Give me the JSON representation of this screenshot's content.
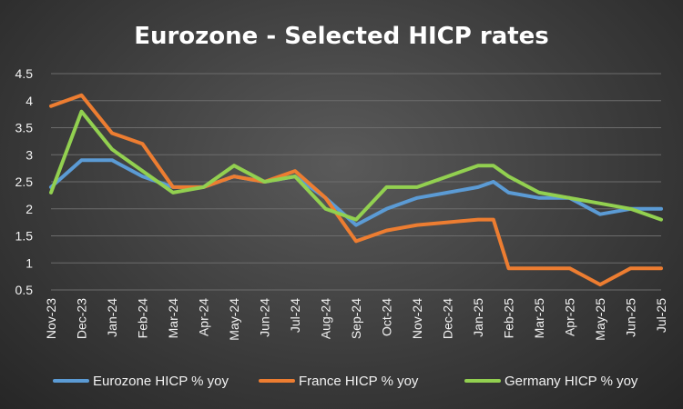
{
  "chart_data": {
    "type": "line",
    "title": "Eurozone - Selected HICP rates",
    "xlabel": "",
    "ylabel": "",
    "ylim": [
      0.5,
      4.5
    ],
    "yticks": [
      "0.5",
      "1",
      "1.5",
      "2",
      "2.5",
      "3",
      "3.5",
      "4",
      "4.5"
    ],
    "grid": true,
    "legend_position": "bottom",
    "categories": [
      "Nov-23",
      "Dec-23",
      "Jan-24",
      "Feb-24",
      "Mar-24",
      "Apr-24",
      "May-24",
      "Jun-24",
      "Jul-24",
      "Aug-24",
      "Sep-24",
      "Oct-24",
      "Nov-24",
      "Dec-24",
      "Jan-25",
      "Feb-25",
      "Mar-25",
      "Apr-25",
      "May-25",
      "Jun-25",
      "Jul-25"
    ],
    "series": [
      {
        "name": "Eurozone HICP % yoy",
        "color": "#5b9bd5",
        "points": [
          [
            "Nov-23",
            2.4
          ],
          [
            "Dec-23",
            2.9
          ],
          [
            "Jan-24",
            2.9
          ],
          [
            "Feb-24",
            2.6
          ],
          [
            "Mar-24",
            2.4
          ],
          [
            "Apr-24",
            2.4
          ],
          [
            "May-24",
            2.6
          ],
          [
            "Jun-24",
            2.5
          ],
          [
            "Jul-24",
            2.6
          ],
          [
            "Aug-24",
            2.2
          ],
          [
            "Sep-24",
            1.7
          ],
          [
            "Oct-24",
            2.0
          ],
          [
            "Nov-24",
            2.2
          ],
          [
            "Dec-24",
            2.3
          ],
          [
            "Jan-25",
            2.4
          ],
          [
            14.5,
            2.5
          ],
          [
            "Feb-25",
            2.3
          ],
          [
            "Mar-25",
            2.2
          ],
          [
            "Apr-25",
            2.2
          ],
          [
            "May-25",
            1.9
          ],
          [
            "Jun-25",
            2.0
          ],
          [
            "Jul-25",
            2.0
          ]
        ]
      },
      {
        "name": "France HICP % yoy",
        "color": "#ed7d31",
        "points": [
          [
            "Nov-23",
            3.9
          ],
          [
            "Dec-23",
            4.1
          ],
          [
            "Jan-24",
            3.4
          ],
          [
            "Feb-24",
            3.2
          ],
          [
            "Mar-24",
            2.4
          ],
          [
            "Apr-24",
            2.4
          ],
          [
            "May-24",
            2.6
          ],
          [
            "Jun-24",
            2.5
          ],
          [
            "Jul-24",
            2.7
          ],
          [
            "Aug-24",
            2.2
          ],
          [
            "Sep-24",
            1.4
          ],
          [
            "Oct-24",
            1.6
          ],
          [
            "Nov-24",
            1.7
          ],
          [
            "Dec-24",
            1.75
          ],
          [
            "Jan-25",
            1.8
          ],
          [
            14.5,
            1.8
          ],
          [
            "Feb-25",
            0.9
          ],
          [
            "Mar-25",
            0.9
          ],
          [
            "Apr-25",
            0.9
          ],
          [
            "May-25",
            0.6
          ],
          [
            "Jun-25",
            0.9
          ],
          [
            "Jul-25",
            0.9
          ]
        ]
      },
      {
        "name": "Germany HICP % yoy",
        "color": "#92d050",
        "points": [
          [
            "Nov-23",
            2.3
          ],
          [
            "Dec-23",
            3.8
          ],
          [
            "Jan-24",
            3.1
          ],
          [
            "Feb-24",
            2.7
          ],
          [
            "Mar-24",
            2.3
          ],
          [
            "Apr-24",
            2.4
          ],
          [
            "May-24",
            2.8
          ],
          [
            "Jun-24",
            2.5
          ],
          [
            "Jul-24",
            2.6
          ],
          [
            "Aug-24",
            2.0
          ],
          [
            "Sep-24",
            1.8
          ],
          [
            "Oct-24",
            2.4
          ],
          [
            "Nov-24",
            2.4
          ],
          [
            "Dec-24",
            2.6
          ],
          [
            "Jan-25",
            2.8
          ],
          [
            14.5,
            2.8
          ],
          [
            "Feb-25",
            2.6
          ],
          [
            "Mar-25",
            2.3
          ],
          [
            "Apr-25",
            2.2
          ],
          [
            "May-25",
            2.1
          ],
          [
            "Jun-25",
            2.0
          ],
          [
            "Jul-25",
            1.8
          ]
        ]
      }
    ]
  }
}
